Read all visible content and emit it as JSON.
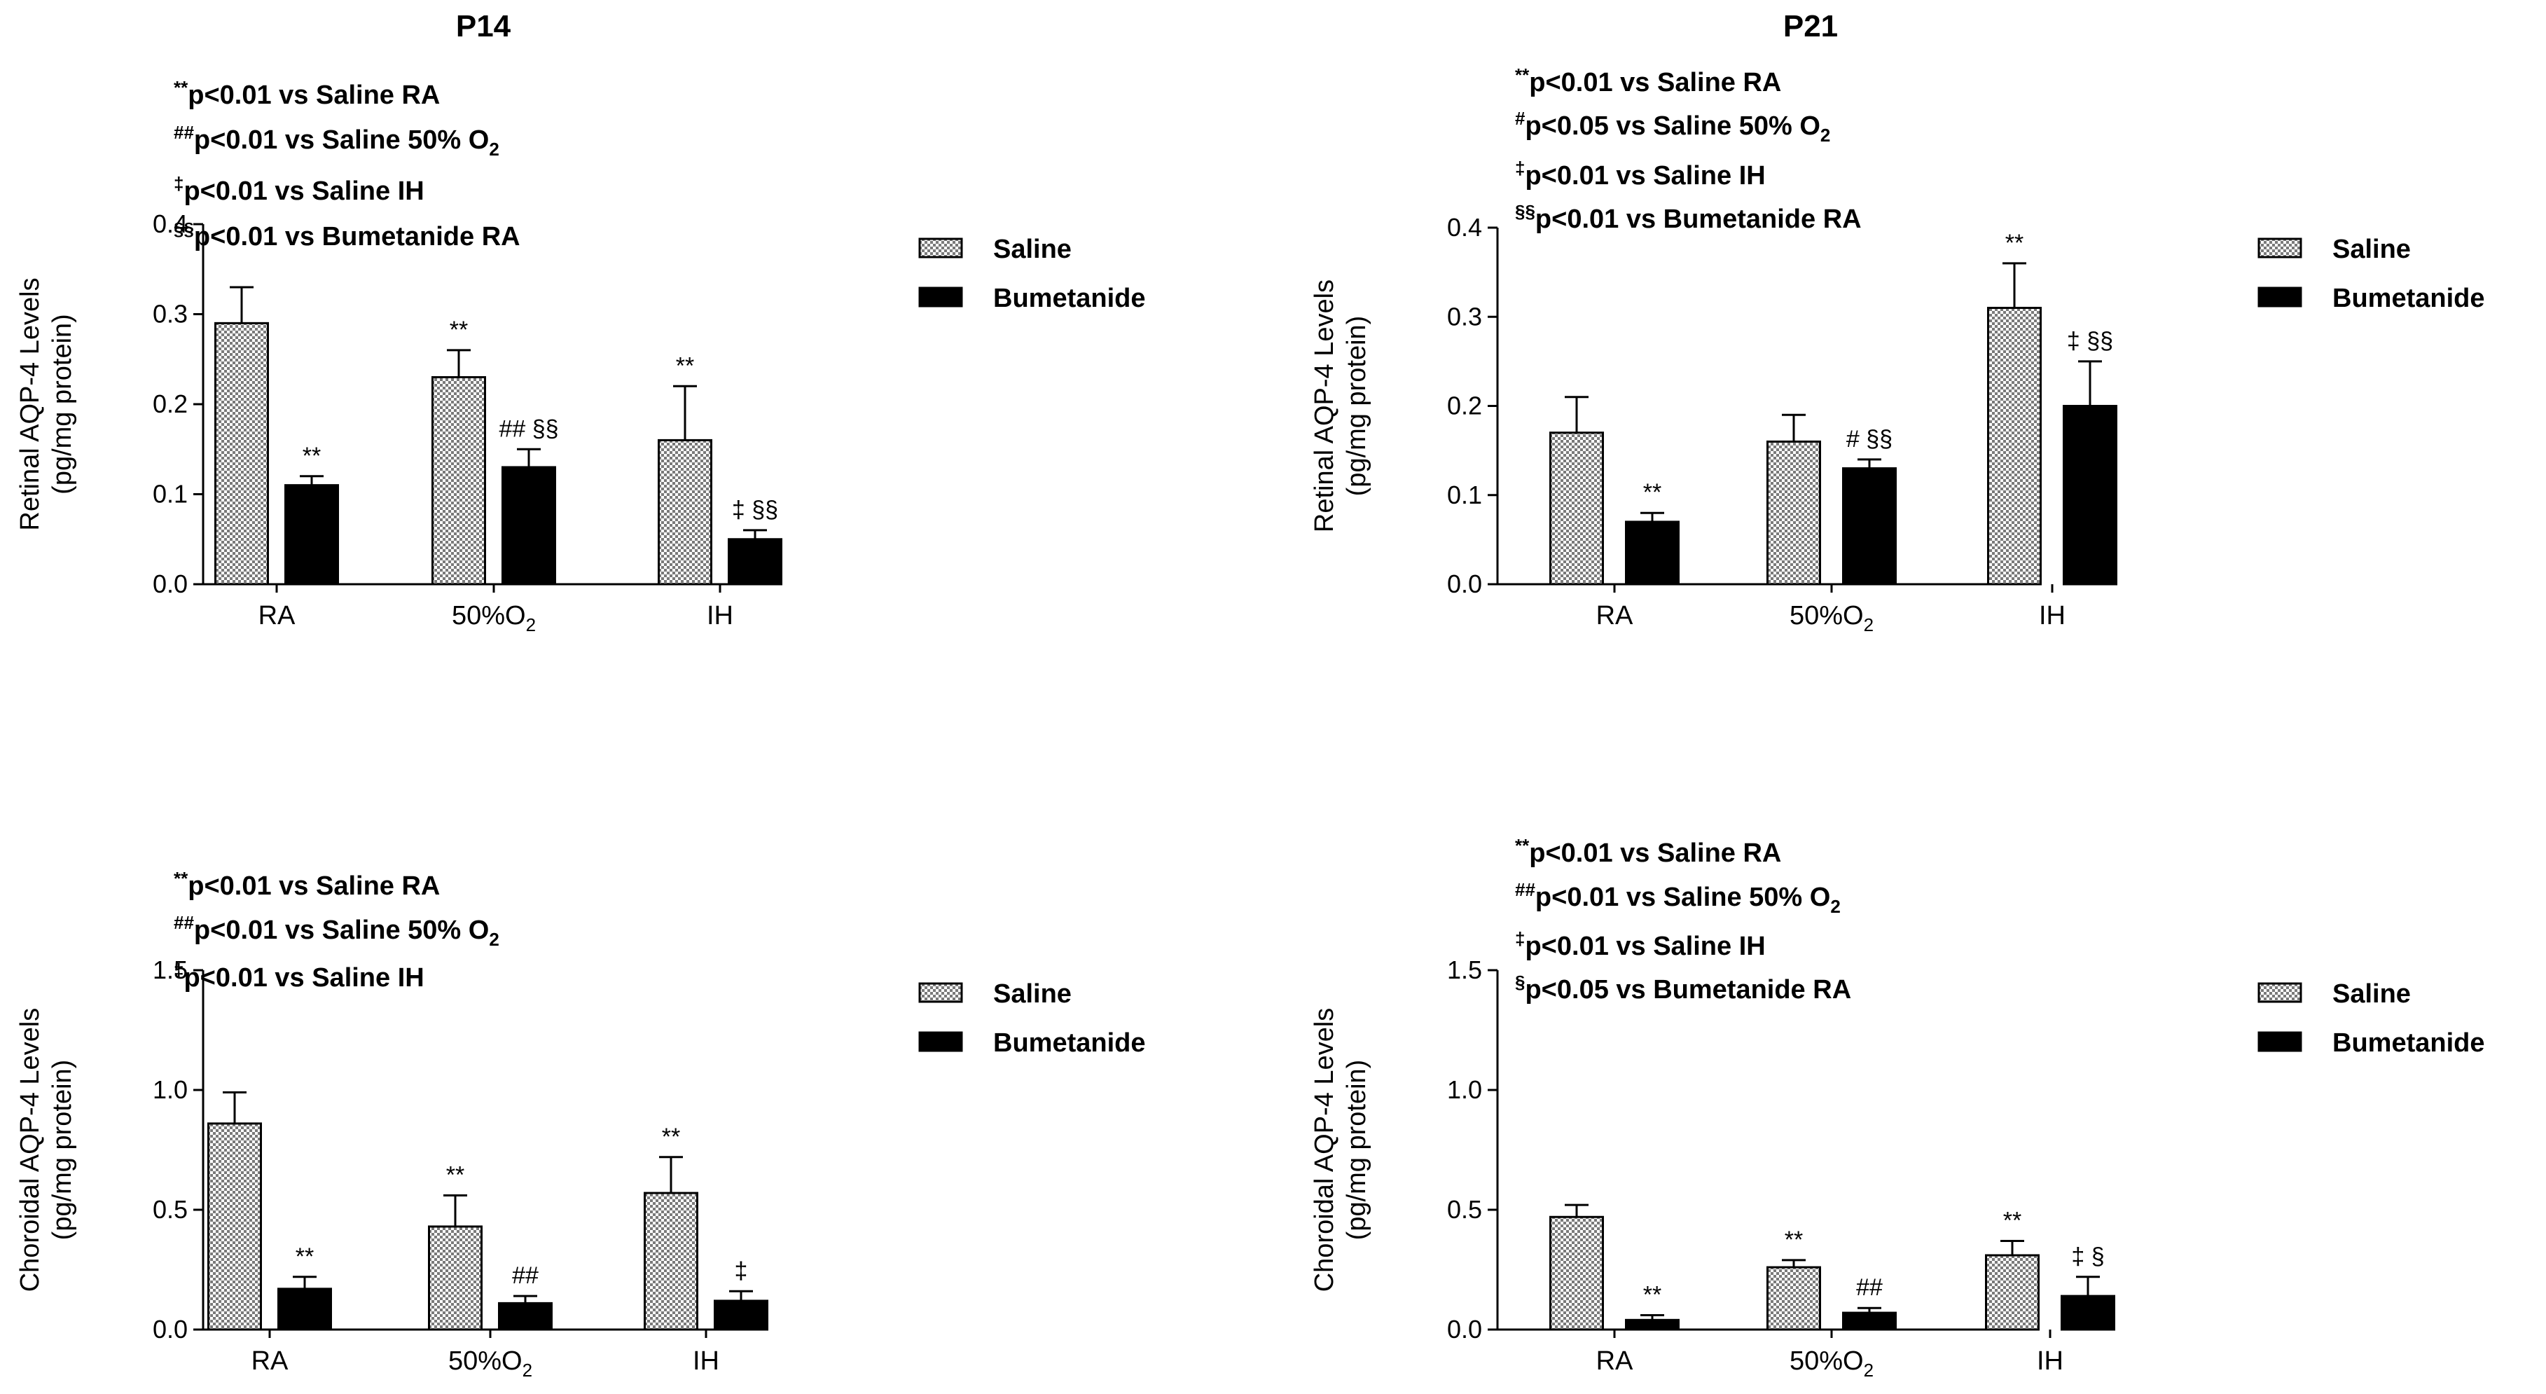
{
  "colors": {
    "saline_fill": "#9a9a9a",
    "saline_bg": "#ffffff",
    "bumetanide": "#000000",
    "axis": "#000000"
  },
  "chart_data": [
    {
      "type": "bar",
      "title": "P14",
      "ylabel_line1": "Retinal AQP-4 Levels",
      "ylabel_line2": "(pg/mg protein)",
      "ylim": [
        0,
        0.4
      ],
      "yticks": [
        "0.0",
        "0.1",
        "0.2",
        "0.3",
        "0.4"
      ],
      "categories": [
        {
          "base": "RA",
          "sub": ""
        },
        {
          "base": "50%O",
          "sub": "2"
        },
        {
          "base": "IH",
          "sub": ""
        }
      ],
      "series": [
        {
          "name": "Saline",
          "values": [
            0.29,
            0.23,
            0.16
          ],
          "errors": [
            0.04,
            0.03,
            0.06
          ],
          "annotations": [
            "",
            "**",
            "**"
          ]
        },
        {
          "name": "Bumetanide",
          "values": [
            0.11,
            0.13,
            0.05
          ],
          "errors": [
            0.01,
            0.02,
            0.01
          ],
          "annotations": [
            "**",
            "## §§",
            "‡ §§"
          ]
        }
      ],
      "legend": [
        "Saline",
        "Bumetanide"
      ],
      "notes": [
        {
          "sup": "**",
          "text": "p<0.01 vs Saline RA",
          "sub": ""
        },
        {
          "sup": "##",
          "text": "p<0.01 vs Saline 50% O",
          "sub": "2"
        },
        {
          "sup": "‡",
          "text": "p<0.01 vs Saline IH",
          "sub": ""
        },
        {
          "sup": "§§",
          "text": "p<0.01 vs Bumetanide RA",
          "sub": ""
        }
      ]
    },
    {
      "type": "bar",
      "title": "P21",
      "ylabel_line1": "Retinal AQP-4 Levels",
      "ylabel_line2": "(pg/mg protein)",
      "ylim": [
        0,
        0.4
      ],
      "yticks": [
        "0.0",
        "0.1",
        "0.2",
        "0.3",
        "0.4"
      ],
      "categories": [
        {
          "base": "RA",
          "sub": ""
        },
        {
          "base": "50%O",
          "sub": "2"
        },
        {
          "base": "IH",
          "sub": ""
        }
      ],
      "series": [
        {
          "name": "Saline",
          "values": [
            0.17,
            0.16,
            0.31
          ],
          "errors": [
            0.04,
            0.03,
            0.05
          ],
          "annotations": [
            "",
            "",
            "**"
          ]
        },
        {
          "name": "Bumetanide",
          "values": [
            0.07,
            0.13,
            0.2
          ],
          "errors": [
            0.01,
            0.01,
            0.05
          ],
          "annotations": [
            "**",
            "# §§",
            "‡ §§"
          ]
        }
      ],
      "legend": [
        "Saline",
        "Bumetanide"
      ],
      "notes": [
        {
          "sup": "**",
          "text": "p<0.01 vs Saline RA",
          "sub": ""
        },
        {
          "sup": "#",
          "text": "p<0.05 vs Saline 50% O",
          "sub": "2"
        },
        {
          "sup": "‡",
          "text": "p<0.01 vs Saline IH",
          "sub": ""
        },
        {
          "sup": "§§",
          "text": "p<0.01 vs Bumetanide RA",
          "sub": ""
        }
      ]
    },
    {
      "type": "bar",
      "title": "",
      "ylabel_line1": "Choroidal AQP-4 Levels",
      "ylabel_line2": "(pg/mg protein)",
      "ylim": [
        0,
        1.5
      ],
      "yticks": [
        "0.0",
        "0.5",
        "1.0",
        "1.5"
      ],
      "categories": [
        {
          "base": "RA",
          "sub": ""
        },
        {
          "base": "50%O",
          "sub": "2"
        },
        {
          "base": "IH",
          "sub": ""
        }
      ],
      "series": [
        {
          "name": "Saline",
          "values": [
            0.86,
            0.43,
            0.57
          ],
          "errors": [
            0.13,
            0.13,
            0.15
          ],
          "annotations": [
            "",
            "**",
            "**"
          ]
        },
        {
          "name": "Bumetanide",
          "values": [
            0.17,
            0.11,
            0.12
          ],
          "errors": [
            0.05,
            0.03,
            0.04
          ],
          "annotations": [
            "**",
            "##",
            "‡"
          ]
        }
      ],
      "legend": [
        "Saline",
        "Bumetanide"
      ],
      "notes": [
        {
          "sup": "**",
          "text": "p<0.01 vs Saline RA",
          "sub": ""
        },
        {
          "sup": "##",
          "text": "p<0.01 vs Saline 50% O",
          "sub": "2"
        },
        {
          "sup": "‡",
          "text": "p<0.01 vs Saline IH",
          "sub": ""
        }
      ]
    },
    {
      "type": "bar",
      "title": "",
      "ylabel_line1": "Choroidal AQP-4 Levels",
      "ylabel_line2": "(pg/mg protein)",
      "ylim": [
        0,
        1.5
      ],
      "yticks": [
        "0.0",
        "0.5",
        "1.0",
        "1.5"
      ],
      "categories": [
        {
          "base": "RA",
          "sub": ""
        },
        {
          "base": "50%O",
          "sub": "2"
        },
        {
          "base": "IH",
          "sub": ""
        }
      ],
      "series": [
        {
          "name": "Saline",
          "values": [
            0.47,
            0.26,
            0.31
          ],
          "errors": [
            0.05,
            0.03,
            0.06
          ],
          "annotations": [
            "",
            "**",
            "**"
          ]
        },
        {
          "name": "Bumetanide",
          "values": [
            0.04,
            0.07,
            0.14
          ],
          "errors": [
            0.02,
            0.02,
            0.08
          ],
          "annotations": [
            "**",
            "##",
            "‡ §"
          ]
        }
      ],
      "legend": [
        "Saline",
        "Bumetanide"
      ],
      "notes": [
        {
          "sup": "**",
          "text": "p<0.01 vs Saline RA",
          "sub": ""
        },
        {
          "sup": "##",
          "text": "p<0.01 vs Saline 50% O",
          "sub": "2"
        },
        {
          "sup": "‡",
          "text": "p<0.01 vs Saline IH",
          "sub": ""
        },
        {
          "sup": "§",
          "text": "p<0.05 vs Bumetanide RA",
          "sub": ""
        }
      ]
    }
  ]
}
